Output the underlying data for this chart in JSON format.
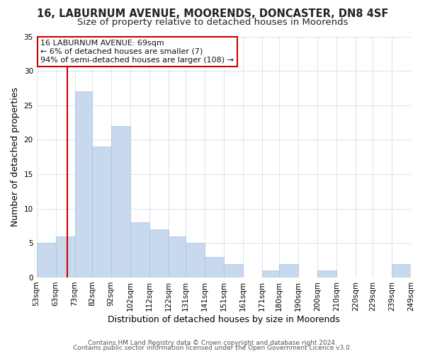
{
  "title": "16, LABURNUM AVENUE, MOORENDS, DONCASTER, DN8 4SF",
  "subtitle": "Size of property relative to detached houses in Moorends",
  "xlabel": "Distribution of detached houses by size in Moorends",
  "ylabel": "Number of detached properties",
  "bar_color": "#c8d9ee",
  "bar_edge_color": "#a8c0de",
  "bins": [
    "53sqm",
    "63sqm",
    "73sqm",
    "82sqm",
    "92sqm",
    "102sqm",
    "112sqm",
    "122sqm",
    "131sqm",
    "141sqm",
    "151sqm",
    "161sqm",
    "171sqm",
    "180sqm",
    "190sqm",
    "200sqm",
    "210sqm",
    "220sqm",
    "229sqm",
    "239sqm",
    "249sqm"
  ],
  "bin_edges": [
    53,
    63,
    73,
    82,
    92,
    102,
    112,
    122,
    131,
    141,
    151,
    161,
    171,
    180,
    190,
    200,
    210,
    220,
    229,
    239,
    249
  ],
  "counts": [
    5,
    6,
    27,
    19,
    22,
    8,
    7,
    6,
    5,
    3,
    2,
    0,
    1,
    2,
    0,
    1,
    0,
    0,
    0,
    2,
    0
  ],
  "property_line_x": 69,
  "property_line_color": "#cc0000",
  "annotation_text": "16 LABURNUM AVENUE: 69sqm\n← 6% of detached houses are smaller (7)\n94% of semi-detached houses are larger (108) →",
  "annotation_box_color": "#ffffff",
  "annotation_box_edge": "#cc0000",
  "ylim": [
    0,
    35
  ],
  "yticks": [
    0,
    5,
    10,
    15,
    20,
    25,
    30,
    35
  ],
  "footer1": "Contains HM Land Registry data © Crown copyright and database right 2024.",
  "footer2": "Contains public sector information licensed under the Open Government Licence v3.0.",
  "bg_color": "#ffffff",
  "grid_color": "#d8e4f0",
  "title_fontsize": 10.5,
  "subtitle_fontsize": 9.5,
  "axis_label_fontsize": 9,
  "tick_fontsize": 7.5,
  "footer_fontsize": 6.5,
  "annotation_fontsize": 8
}
